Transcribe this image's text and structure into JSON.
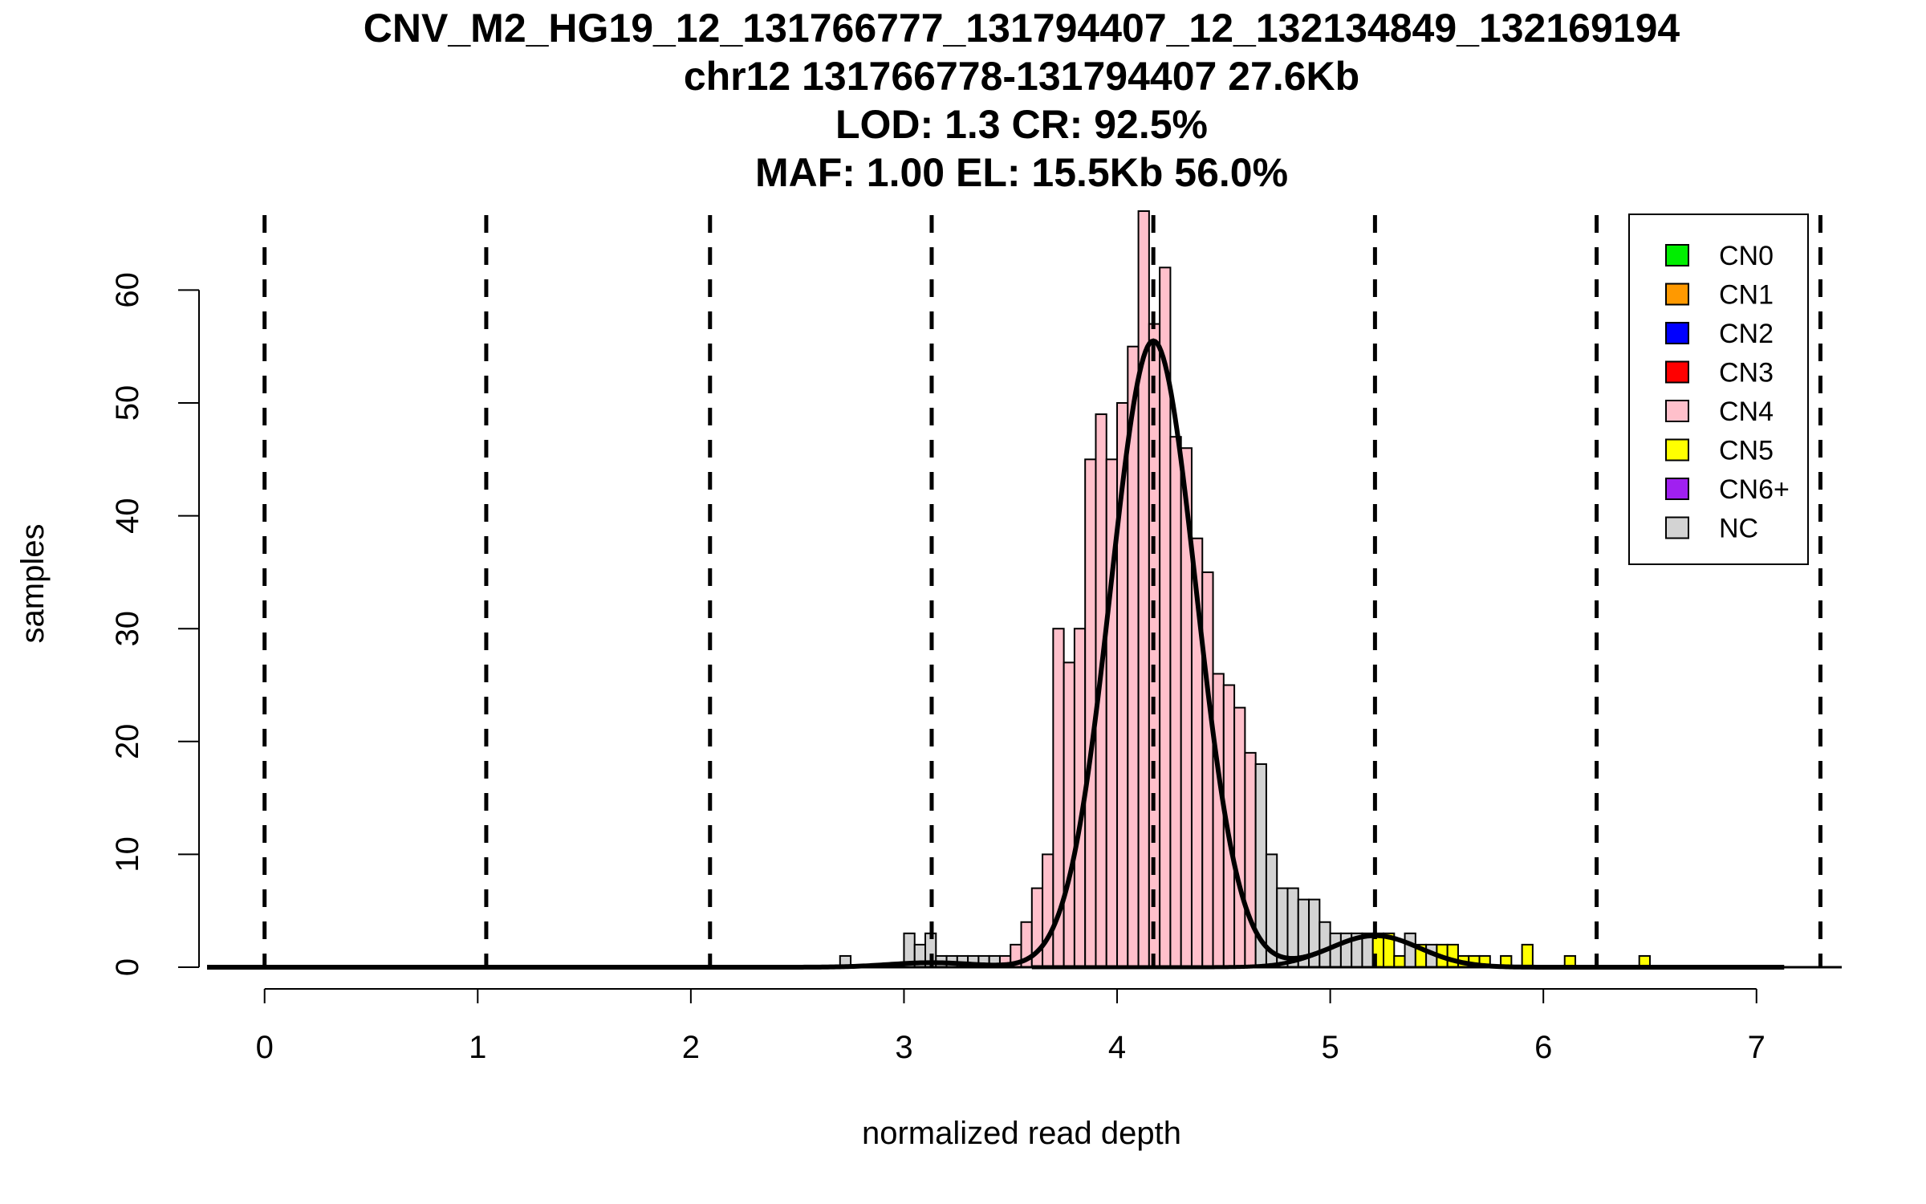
{
  "chart_data": {
    "type": "histogram",
    "title_lines": [
      "CNV_M2_HG19_12_131766777_131794407_12_132134849_132169194",
      "chr12 131766778-131794407 27.6Kb",
      "LOD: 1.3 CR: 92.5%",
      "MAF: 1.00 EL: 15.5Kb 56.0%"
    ],
    "xlabel": "normalized read depth",
    "ylabel": "samples",
    "xlim": [
      -0.27,
      7.4
    ],
    "ylim": [
      0,
      67
    ],
    "x_ticks": [
      0,
      1,
      2,
      3,
      4,
      5,
      6,
      7
    ],
    "y_ticks": [
      0,
      10,
      20,
      30,
      40,
      50,
      60
    ],
    "colors": {
      "CN0": "#00ee00",
      "CN1": "#ff9900",
      "CN2": "#0000ff",
      "CN3": "#ff0000",
      "CN4": "#ffc0cb",
      "CN5": "#ffff00",
      "CN6+": "#a020f0",
      "NC": "#d3d3d3"
    },
    "legend": {
      "position": "top-right",
      "entries": [
        "CN0",
        "CN1",
        "CN2",
        "CN3",
        "CN4",
        "CN5",
        "CN6+",
        "NC"
      ]
    },
    "thresholds": [
      0,
      1.04,
      2.09,
      3.13,
      4.17,
      5.21,
      6.25,
      7.3
    ],
    "bin_width": 0.05,
    "bars": [
      {
        "x": 2.7,
        "count": 1,
        "cn": "NC"
      },
      {
        "x": 3.0,
        "count": 3,
        "cn": "NC"
      },
      {
        "x": 3.05,
        "count": 2,
        "cn": "NC"
      },
      {
        "x": 3.1,
        "count": 3,
        "cn": "NC"
      },
      {
        "x": 3.15,
        "count": 1,
        "cn": "NC"
      },
      {
        "x": 3.2,
        "count": 1,
        "cn": "NC"
      },
      {
        "x": 3.25,
        "count": 1,
        "cn": "NC"
      },
      {
        "x": 3.3,
        "count": 1,
        "cn": "NC"
      },
      {
        "x": 3.35,
        "count": 1,
        "cn": "NC"
      },
      {
        "x": 3.4,
        "count": 1,
        "cn": "NC"
      },
      {
        "x": 3.45,
        "count": 1,
        "cn": "CN4"
      },
      {
        "x": 3.5,
        "count": 2,
        "cn": "CN4"
      },
      {
        "x": 3.55,
        "count": 4,
        "cn": "CN4"
      },
      {
        "x": 3.6,
        "count": 7,
        "cn": "CN4"
      },
      {
        "x": 3.65,
        "count": 10,
        "cn": "CN4"
      },
      {
        "x": 3.7,
        "count": 30,
        "cn": "CN4"
      },
      {
        "x": 3.75,
        "count": 27,
        "cn": "CN4"
      },
      {
        "x": 3.8,
        "count": 30,
        "cn": "CN4"
      },
      {
        "x": 3.85,
        "count": 45,
        "cn": "CN4"
      },
      {
        "x": 3.9,
        "count": 49,
        "cn": "CN4"
      },
      {
        "x": 3.95,
        "count": 45,
        "cn": "CN4"
      },
      {
        "x": 4.0,
        "count": 50,
        "cn": "CN4"
      },
      {
        "x": 4.05,
        "count": 55,
        "cn": "CN4"
      },
      {
        "x": 4.1,
        "count": 67,
        "cn": "CN4"
      },
      {
        "x": 4.15,
        "count": 57,
        "cn": "CN4"
      },
      {
        "x": 4.2,
        "count": 62,
        "cn": "CN4"
      },
      {
        "x": 4.25,
        "count": 47,
        "cn": "CN4"
      },
      {
        "x": 4.3,
        "count": 46,
        "cn": "CN4"
      },
      {
        "x": 4.35,
        "count": 38,
        "cn": "CN4"
      },
      {
        "x": 4.4,
        "count": 35,
        "cn": "CN4"
      },
      {
        "x": 4.45,
        "count": 26,
        "cn": "CN4"
      },
      {
        "x": 4.5,
        "count": 25,
        "cn": "CN4"
      },
      {
        "x": 4.55,
        "count": 23,
        "cn": "CN4"
      },
      {
        "x": 4.6,
        "count": 19,
        "cn": "CN4"
      },
      {
        "x": 4.65,
        "count": 18,
        "cn": "NC"
      },
      {
        "x": 4.7,
        "count": 10,
        "cn": "NC"
      },
      {
        "x": 4.75,
        "count": 7,
        "cn": "NC"
      },
      {
        "x": 4.8,
        "count": 7,
        "cn": "NC"
      },
      {
        "x": 4.85,
        "count": 6,
        "cn": "NC"
      },
      {
        "x": 4.9,
        "count": 6,
        "cn": "NC"
      },
      {
        "x": 4.95,
        "count": 4,
        "cn": "NC"
      },
      {
        "x": 5.0,
        "count": 3,
        "cn": "NC"
      },
      {
        "x": 5.05,
        "count": 3,
        "cn": "NC"
      },
      {
        "x": 5.1,
        "count": 3,
        "cn": "NC"
      },
      {
        "x": 5.15,
        "count": 3,
        "cn": "NC"
      },
      {
        "x": 5.2,
        "count": 3,
        "cn": "CN5"
      },
      {
        "x": 5.25,
        "count": 3,
        "cn": "CN5"
      },
      {
        "x": 5.3,
        "count": 1,
        "cn": "CN5"
      },
      {
        "x": 5.35,
        "count": 3,
        "cn": "NC"
      },
      {
        "x": 5.4,
        "count": 2,
        "cn": "CN5"
      },
      {
        "x": 5.45,
        "count": 2,
        "cn": "NC"
      },
      {
        "x": 5.5,
        "count": 2,
        "cn": "CN5"
      },
      {
        "x": 5.55,
        "count": 2,
        "cn": "CN5"
      },
      {
        "x": 5.6,
        "count": 1,
        "cn": "CN5"
      },
      {
        "x": 5.65,
        "count": 1,
        "cn": "CN5"
      },
      {
        "x": 5.7,
        "count": 1,
        "cn": "CN5"
      },
      {
        "x": 5.8,
        "count": 1,
        "cn": "CN5"
      },
      {
        "x": 5.9,
        "count": 2,
        "cn": "CN5"
      },
      {
        "x": 6.1,
        "count": 1,
        "cn": "CN5"
      },
      {
        "x": 6.45,
        "count": 1,
        "cn": "CN5"
      }
    ],
    "fits": [
      {
        "name": "CN3",
        "mean": 3.13,
        "sd": 0.2,
        "peak": 0.4
      },
      {
        "name": "CN4",
        "mean": 4.17,
        "sd": 0.2,
        "peak": 55.5
      },
      {
        "name": "CN5",
        "mean": 5.21,
        "sd": 0.21,
        "peak": 2.8
      }
    ]
  }
}
